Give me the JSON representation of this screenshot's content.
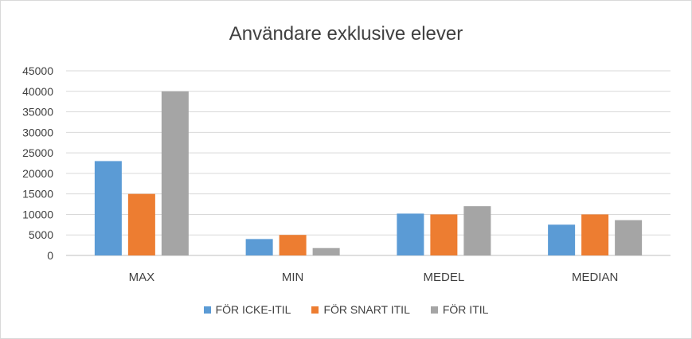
{
  "chart_data": {
    "type": "bar",
    "title": "Användare exklusive elever",
    "categories": [
      "MAX",
      "MIN",
      "MEDEL",
      "MEDIAN"
    ],
    "series": [
      {
        "name": "FÖR ICKE-ITIL",
        "color": "#5b9bd5",
        "values": [
          23000,
          4000,
          10200,
          7500
        ]
      },
      {
        "name": "FÖR SNART ITIL",
        "color": "#ed7d31",
        "values": [
          15000,
          5000,
          10000,
          10000
        ]
      },
      {
        "name": "FÖR ITIL",
        "color": "#a5a5a5",
        "values": [
          40000,
          1800,
          12000,
          8600
        ]
      }
    ],
    "ylim": [
      0,
      45000
    ],
    "yticks": [
      "0",
      "5000",
      "10000",
      "15000",
      "20000",
      "25000",
      "30000",
      "35000",
      "40000",
      "45000"
    ],
    "grid": true,
    "legend_position": "bottom"
  }
}
